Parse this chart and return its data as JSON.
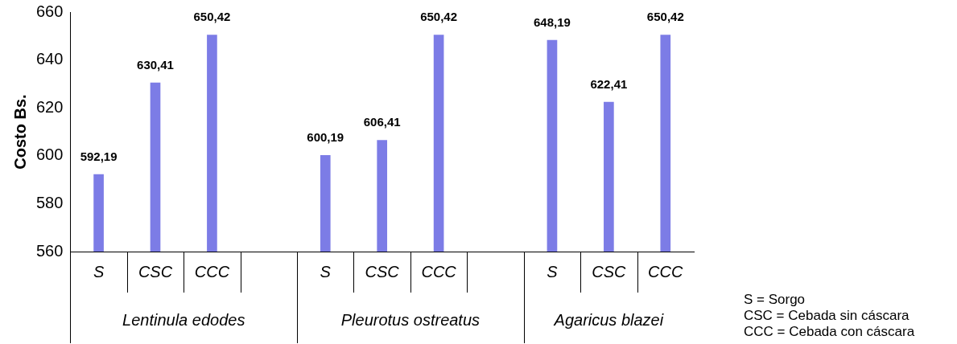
{
  "chart_data": {
    "type": "bar",
    "ylabel": "Costo Bs.",
    "categories": [
      "S",
      "CSC",
      "CCC",
      null,
      "S",
      "CSC",
      "CCC",
      null,
      "S",
      "CSC",
      "CCC"
    ],
    "values": [
      592.19,
      630.41,
      650.42,
      null,
      600.19,
      606.41,
      650.42,
      null,
      648.19,
      622.41,
      650.42
    ],
    "value_labels": [
      "592,19",
      "630,41",
      "650,42",
      null,
      "600,19",
      "606,41",
      "650,42",
      null,
      "648,19",
      "622,41",
      "650,42"
    ],
    "color": "#7c7ce6",
    "ylim": [
      560,
      660
    ],
    "yticks": [
      560,
      580,
      600,
      620,
      640,
      660
    ],
    "annotations": [
      "Lentinula edodes",
      "Pleurotus ostreatus",
      "Agaricus blazei",
      "S = Sorgo",
      "CSC = Cebada sin cáscara",
      "CCC = Cebada con cáscara"
    ],
    "grid": false,
    "legend": false
  }
}
